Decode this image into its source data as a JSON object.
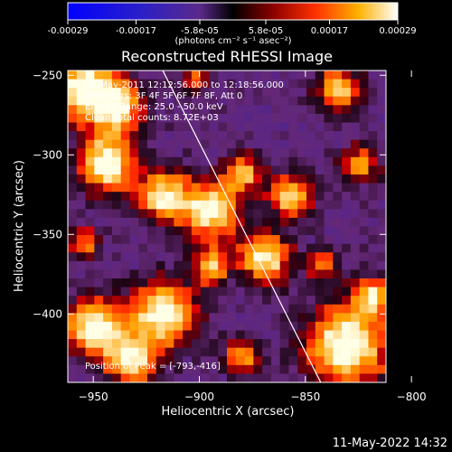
{
  "chart_data": {
    "type": "heatmap",
    "title": "Reconstructed RHESSI Image",
    "xlabel": "Heliocentric X (arcsec)",
    "ylabel": "Heliocentric Y (arcsec)",
    "xlim": [
      -962,
      -812
    ],
    "ylim": [
      -443,
      -247
    ],
    "x_ticks": [
      -950,
      -900,
      -850,
      -800
    ],
    "x_tick_labels": [
      "−950",
      "−900",
      "−850",
      "−800"
    ],
    "y_ticks": [
      -250,
      -300,
      -350,
      -400
    ],
    "y_tick_labels": [
      "−250",
      "−300",
      "−350",
      "−400"
    ],
    "colorbar": {
      "vmin": -0.00029,
      "vmax": 0.00029,
      "ticks": [
        -0.00029,
        -0.00017,
        -5.8e-05,
        5.8e-05,
        0.00017,
        0.00029
      ],
      "tick_labels": [
        "-0.00029",
        "-0.00017",
        "-5.8e-05",
        "5.8e-05",
        "0.00017",
        "0.00029"
      ],
      "unit_label": "(photons cm⁻² s⁻¹ asec⁻²)"
    },
    "annotations": [
      "28-May-2011 12:12:56.000 to 12:18:56.000",
      "Detectors: 3F 4F 5F 6F 7F 8F, Att 0",
      "Energy Range: 25.0 - 50.0 keV",
      "Clean     Total counts: 8.72E+03"
    ],
    "peak_label": "Position of Peak = [-793,-416]",
    "peak": {
      "x": -793,
      "y": -416
    },
    "limb_line": {
      "x_top": -918,
      "y_top": -245,
      "x_bottom": -842,
      "y_bottom": -445
    },
    "colors": {
      "background": "#000000",
      "text": "#ffffff"
    }
  },
  "footer": {
    "timestamp": "11-May-2022 14:32"
  }
}
